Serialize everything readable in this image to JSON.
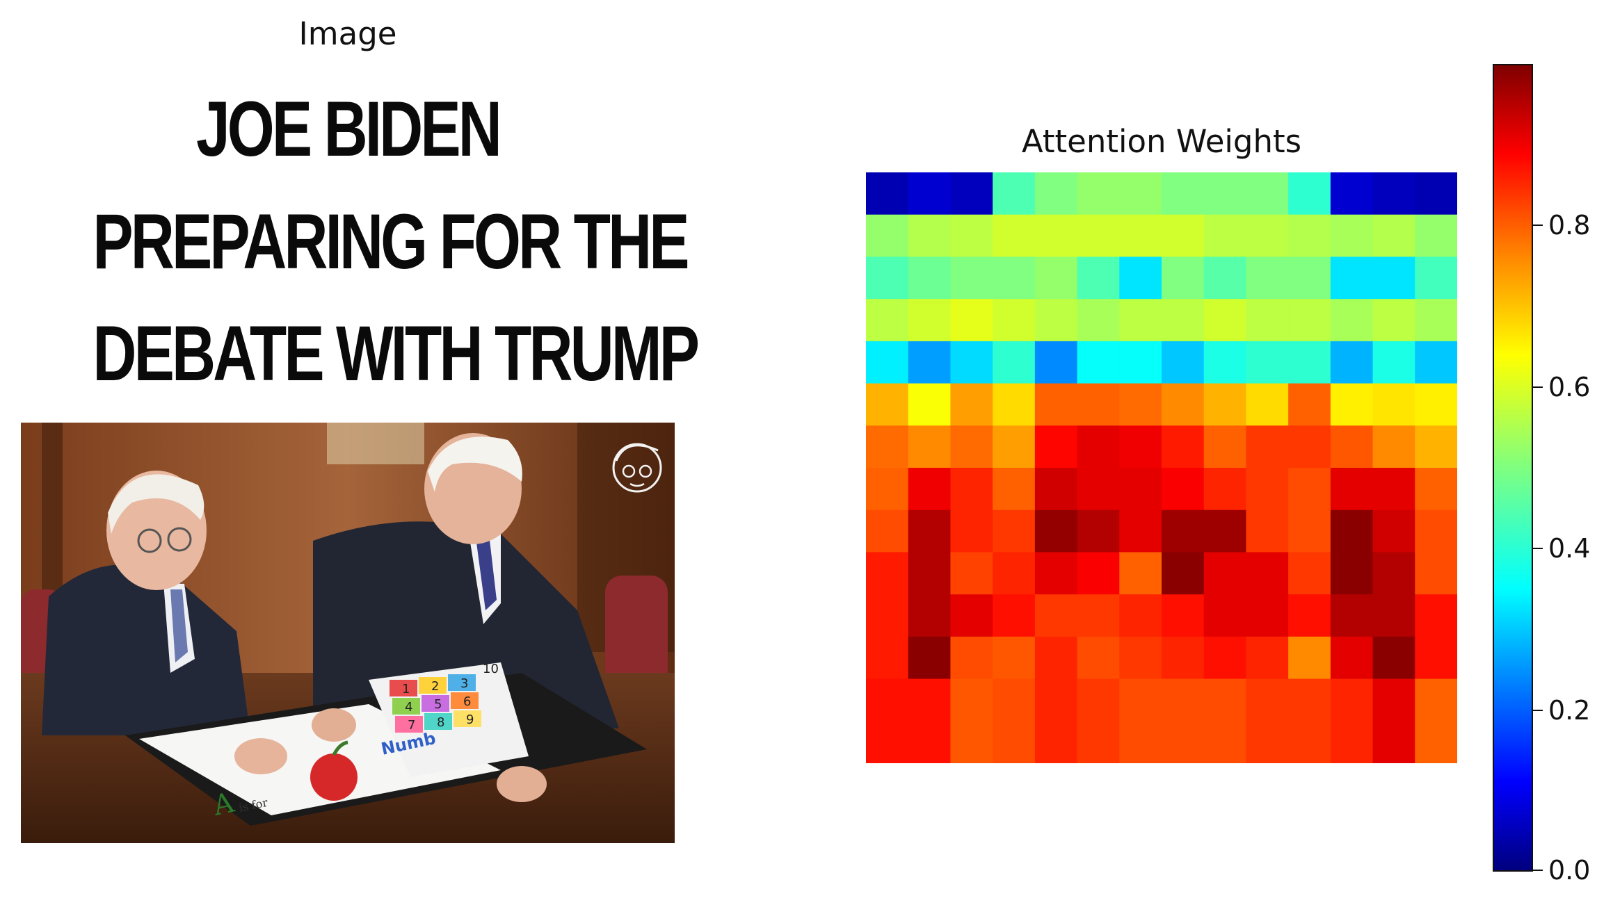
{
  "left_panel": {
    "title": "Image",
    "meme_lines": [
      "JOE BIDEN",
      "PREPARING FOR THE",
      "DEBATE WITH TRUMP"
    ],
    "photo_text": {
      "book_label": "Numb",
      "apple_letter": "A",
      "apple_caption": "is for",
      "numbers": [
        "1",
        "2",
        "3",
        "4",
        "5",
        "6",
        "7",
        "8",
        "9",
        "10"
      ]
    }
  },
  "chart_data": {
    "type": "heatmap",
    "title": "Attention Weights",
    "colormap": "jet",
    "vmin": 0.0,
    "vmax": 1.0,
    "colorbar_ticks": [
      0.0,
      0.2,
      0.4,
      0.6,
      0.8
    ],
    "colorbar_tick_labels": [
      "0.0",
      "0.2",
      "0.4",
      "0.6",
      "0.8"
    ],
    "rows": 14,
    "cols": 14,
    "values": [
      [
        0.05,
        0.08,
        0.06,
        0.45,
        0.5,
        0.52,
        0.52,
        0.5,
        0.5,
        0.5,
        0.42,
        0.08,
        0.06,
        0.05
      ],
      [
        0.52,
        0.55,
        0.56,
        0.58,
        0.58,
        0.58,
        0.58,
        0.58,
        0.56,
        0.56,
        0.55,
        0.54,
        0.55,
        0.52
      ],
      [
        0.45,
        0.48,
        0.5,
        0.5,
        0.52,
        0.45,
        0.35,
        0.5,
        0.46,
        0.5,
        0.5,
        0.35,
        0.35,
        0.44
      ],
      [
        0.56,
        0.58,
        0.6,
        0.58,
        0.56,
        0.54,
        0.56,
        0.56,
        0.58,
        0.56,
        0.56,
        0.54,
        0.56,
        0.54
      ],
      [
        0.36,
        0.28,
        0.34,
        0.42,
        0.26,
        0.38,
        0.38,
        0.32,
        0.4,
        0.42,
        0.42,
        0.3,
        0.4,
        0.32
      ],
      [
        0.7,
        0.62,
        0.72,
        0.66,
        0.78,
        0.78,
        0.77,
        0.74,
        0.7,
        0.66,
        0.78,
        0.64,
        0.65,
        0.64
      ],
      [
        0.77,
        0.74,
        0.77,
        0.72,
        0.87,
        0.9,
        0.89,
        0.85,
        0.78,
        0.82,
        0.82,
        0.79,
        0.74,
        0.7
      ],
      [
        0.78,
        0.89,
        0.84,
        0.78,
        0.92,
        0.9,
        0.9,
        0.88,
        0.84,
        0.82,
        0.8,
        0.9,
        0.9,
        0.78
      ],
      [
        0.8,
        0.95,
        0.84,
        0.82,
        0.98,
        0.95,
        0.9,
        0.97,
        0.97,
        0.82,
        0.8,
        0.99,
        0.92,
        0.8
      ],
      [
        0.85,
        0.95,
        0.81,
        0.84,
        0.9,
        0.88,
        0.78,
        0.99,
        0.9,
        0.9,
        0.82,
        0.99,
        0.95,
        0.8
      ],
      [
        0.85,
        0.95,
        0.9,
        0.86,
        0.82,
        0.82,
        0.84,
        0.86,
        0.9,
        0.9,
        0.86,
        0.95,
        0.95,
        0.86
      ],
      [
        0.85,
        0.99,
        0.8,
        0.79,
        0.84,
        0.8,
        0.82,
        0.84,
        0.86,
        0.84,
        0.74,
        0.9,
        0.99,
        0.86
      ],
      [
        0.86,
        0.86,
        0.79,
        0.8,
        0.84,
        0.82,
        0.8,
        0.8,
        0.8,
        0.82,
        0.82,
        0.84,
        0.9,
        0.78
      ],
      [
        0.86,
        0.86,
        0.79,
        0.8,
        0.84,
        0.82,
        0.8,
        0.8,
        0.8,
        0.82,
        0.82,
        0.84,
        0.9,
        0.78
      ]
    ]
  }
}
